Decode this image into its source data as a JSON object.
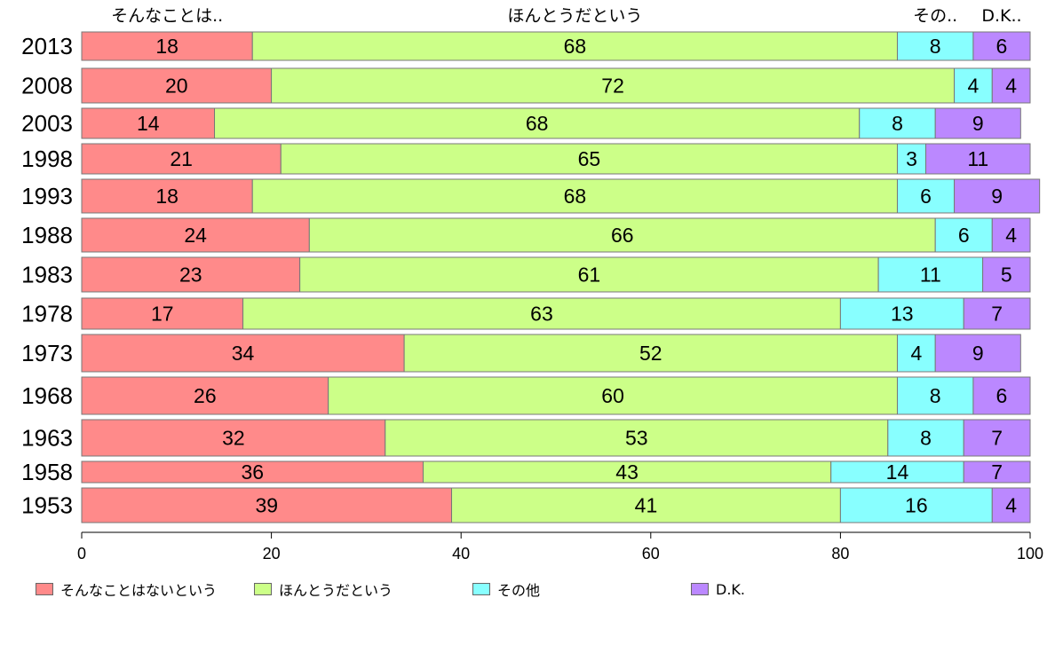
{
  "chart_data": {
    "type": "bar",
    "orientation": "horizontal",
    "stacked": true,
    "categories": [
      "2013",
      "2008",
      "2003",
      "1998",
      "1993",
      "1988",
      "1983",
      "1978",
      "1973",
      "1968",
      "1963",
      "1958",
      "1953"
    ],
    "series": [
      {
        "name": "そんなことはないという",
        "short_label": "そんなことは..",
        "color": "#ff8a8a",
        "values": [
          18,
          20,
          14,
          21,
          18,
          24,
          23,
          17,
          34,
          26,
          32,
          36,
          39
        ]
      },
      {
        "name": "ほんとうだという",
        "short_label": "ほんとうだという",
        "color": "#ccff88",
        "values": [
          68,
          72,
          68,
          65,
          68,
          66,
          61,
          63,
          52,
          60,
          53,
          43,
          41
        ]
      },
      {
        "name": "その他",
        "short_label": "その..",
        "color": "#88ffff",
        "values": [
          8,
          4,
          8,
          3,
          6,
          6,
          11,
          13,
          4,
          8,
          8,
          14,
          16
        ]
      },
      {
        "name": "D.K.",
        "short_label": "D.K..",
        "color": "#bb88ff",
        "values": [
          6,
          4,
          9,
          11,
          9,
          4,
          5,
          7,
          9,
          6,
          7,
          7,
          4
        ]
      }
    ],
    "xlim": [
      0,
      100
    ],
    "x_ticks": [
      0,
      20,
      40,
      60,
      80,
      100
    ],
    "legend_position": "bottom",
    "grid": false
  }
}
